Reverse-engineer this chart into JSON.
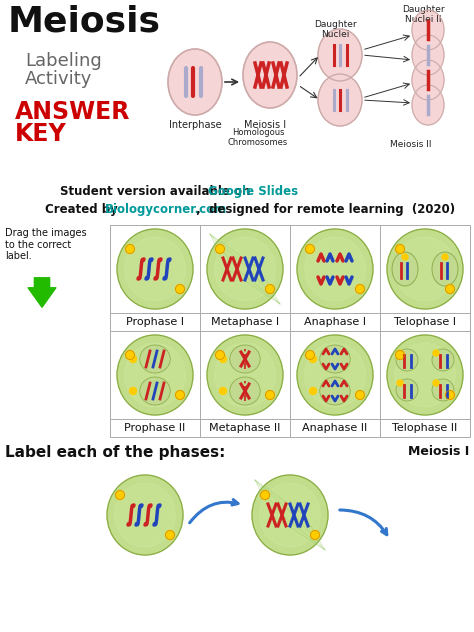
{
  "title": "Meiosis",
  "subtitle_line1": "Labeling",
  "subtitle_line2": "Activity",
  "answer_key_line1": "ANSWER",
  "answer_key_line2": "KEY",
  "student_version_text": "Student version available on ",
  "google_slides_text": "Google Slides",
  "created_by_text": "Created by  ",
  "biology_corner_text": "Biologycorner.com",
  "designed_text": " ,  designed for remote learning  (2020)",
  "drag_text": "Drag the images\nto the correct\nlabel.",
  "phase_labels_row1": [
    "Prophase I",
    "Metaphase I",
    "Anaphase I",
    "Telophase I"
  ],
  "phase_labels_row2": [
    "Prophase II",
    "Metaphase II",
    "Anaphase II",
    "Telophase II"
  ],
  "label_phases_text": "Label each of the phases:",
  "meiosis_I_text": "Meiosis I",
  "bg_color": "#ffffff",
  "title_color": "#111111",
  "subtitle_color": "#666666",
  "answer_key_color": "#cc0000",
  "link_color": "#009999",
  "body_text_color": "#111111",
  "cell_green": "#b8d878",
  "cell_edge": "#88aa44",
  "centriole_color": "#ffcc00",
  "chr_red": "#cc2222",
  "chr_blue": "#2244bb",
  "arrow_green": "#22bb00",
  "arrow_blue": "#3377cc",
  "grid_line_color": "#aaaaaa",
  "header_cell_color": "#f5d5d5",
  "header_cell_edge": "#ccaaaa"
}
